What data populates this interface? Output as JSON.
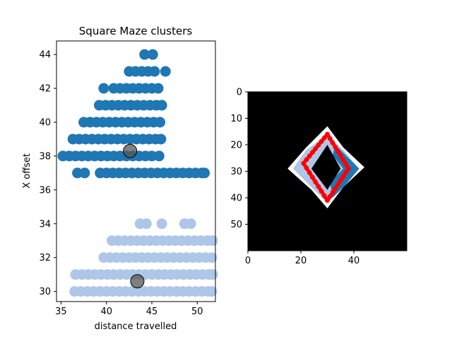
{
  "chart_data": [
    {
      "type": "scatter",
      "title": "Square Maze clusters",
      "xlabel": "distance travelled",
      "ylabel": "X offset",
      "xlim": [
        34.5,
        52.0
      ],
      "ylim": [
        29.4,
        44.8
      ],
      "xticks": [
        35,
        40,
        45,
        50
      ],
      "yticks": [
        30,
        32,
        34,
        36,
        38,
        40,
        42,
        44
      ],
      "grid": false,
      "colors": {
        "cluster_a": "#1f77b4",
        "cluster_b": "#aec7e8",
        "centroid": "#555555"
      },
      "series": [
        {
          "rows": [
            {
              "y": 44,
              "x": [
                44.2,
                45.1
              ]
            },
            {
              "y": 43,
              "x": [
                42.5,
                43.2,
                43.9,
                44.6,
                45.3,
                46.5
              ]
            },
            {
              "y": 42,
              "x": [
                39.7,
                40.8,
                41.5,
                42.2,
                42.9,
                43.6,
                44.3,
                45.0,
                45.7
              ]
            },
            {
              "y": 41,
              "x": [
                39.2,
                39.9,
                40.6,
                41.3,
                42.0,
                42.7,
                43.4,
                44.1,
                44.8,
                45.5,
                46.1
              ]
            },
            {
              "y": 40,
              "x": [
                37.5,
                38.2,
                38.9,
                39.6,
                40.3,
                41.0,
                41.7,
                42.4,
                43.1,
                43.8,
                44.5,
                45.2,
                45.9
              ]
            },
            {
              "y": 39,
              "x": [
                36.3,
                37.0,
                37.7,
                38.4,
                39.1,
                39.8,
                40.5,
                41.2,
                41.9,
                42.6,
                43.3,
                44.0,
                44.7,
                45.4,
                46.0
              ]
            },
            {
              "y": 38,
              "x": [
                35.2,
                35.9,
                36.6,
                37.3,
                38.0,
                38.7,
                39.4,
                40.1,
                40.8,
                41.5,
                42.2,
                42.9,
                43.6,
                44.3,
                45.0,
                45.8
              ]
            },
            {
              "y": 37,
              "x": [
                36.8,
                37.6,
                39.3,
                40.0,
                40.7,
                41.4,
                42.1,
                42.8,
                43.5,
                44.2,
                44.9,
                45.6,
                46.3,
                47.0,
                47.7,
                48.4,
                49.1,
                49.8,
                50.5,
                50.8
              ]
            }
          ]
        },
        {
          "rows": [
            {
              "y": 34,
              "x": [
                43.7,
                44.4,
                46.1,
                48.6,
                49.3
              ]
            },
            {
              "y": 33,
              "x": [
                40.6,
                41.3,
                42.0,
                42.7,
                43.4,
                44.1,
                44.8,
                45.5,
                46.2,
                46.9,
                47.6,
                48.3,
                49.0,
                49.7,
                50.4,
                51.1,
                51.7
              ]
            },
            {
              "y": 32,
              "x": [
                39.7,
                40.4,
                41.1,
                41.8,
                42.5,
                43.2,
                43.9,
                44.6,
                45.3,
                46.0,
                46.7,
                47.4,
                48.1,
                48.8,
                49.5,
                50.2,
                50.9,
                51.6
              ]
            },
            {
              "y": 31,
              "x": [
                36.6,
                37.3,
                38.0,
                38.7,
                39.4,
                40.1,
                40.8,
                41.5,
                42.2,
                42.9,
                43.6,
                44.3,
                45.0,
                45.7,
                46.4,
                47.1,
                47.8,
                48.5,
                49.2,
                49.9,
                50.6,
                51.3,
                51.7
              ]
            },
            {
              "y": 30,
              "x": [
                36.5,
                37.2,
                37.9,
                38.6,
                39.3,
                40.0,
                40.7,
                41.4,
                42.1,
                42.8,
                43.5,
                44.2,
                44.9,
                45.6,
                46.3,
                47.0,
                47.7,
                48.4,
                49.1,
                49.8,
                50.5,
                51.2,
                51.6
              ]
            }
          ]
        }
      ],
      "centroids": [
        {
          "x": 42.6,
          "y": 38.3
        },
        {
          "x": 43.4,
          "y": 30.6
        }
      ]
    },
    {
      "type": "heatmap",
      "xlim": [
        0,
        60
      ],
      "ylim": [
        60,
        0
      ],
      "xticks": [
        0,
        20,
        40
      ],
      "yticks": [
        0,
        10,
        20,
        30,
        40,
        50
      ],
      "colors": {
        "background": "#000000",
        "blob_light": "#aec7e8",
        "blob_dark": "#1f77b4",
        "outline": "#ff0000"
      },
      "diamond": {
        "top": [
          30,
          16
        ],
        "right": [
          38,
          29
        ],
        "bottom": [
          30,
          41
        ],
        "left": [
          21,
          27
        ]
      }
    }
  ]
}
